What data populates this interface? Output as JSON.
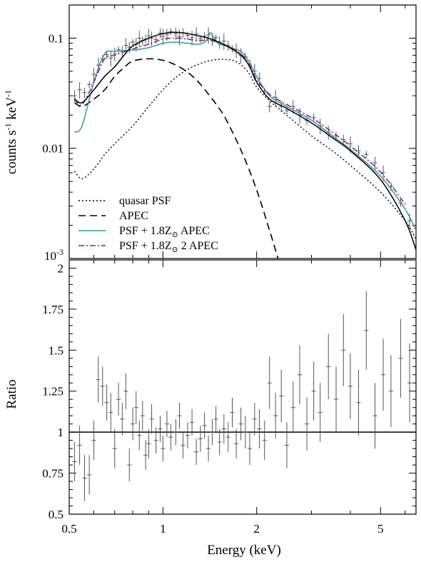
{
  "chart_data": [
    {
      "type": "line",
      "panel": "top",
      "xscale": "log",
      "yscale": "log",
      "xlim": [
        0.5,
        6.5
      ],
      "ylim": [
        0.001,
        0.2
      ],
      "ylabel": "counts s",
      "ylabel_sup1": "-1",
      "ylabel_mid": " keV",
      "ylabel_sup2": "-1",
      "yticks": [
        {
          "value": 0.1,
          "label": "0.1"
        },
        {
          "value": 0.01,
          "label": "0.01"
        },
        {
          "value": 0.001,
          "label": "10",
          "sup": "-3"
        }
      ],
      "legend": {
        "position": "bottom-left",
        "entries": [
          {
            "label": "quasar PSF",
            "style": "dotted",
            "color": "#000000"
          },
          {
            "label": "APEC",
            "style": "dashed",
            "color": "#000000"
          },
          {
            "label": "PSF + 1.8Z",
            "sub": "⊙",
            "tail": " APEC",
            "style": "solid",
            "color": "#2a9d9d"
          },
          {
            "label": "PSF + 1.8Z",
            "sub": "⊙",
            "tail": " 2 APEC",
            "style": "dashdot",
            "color": "#8b1a8b"
          }
        ]
      },
      "series": [
        {
          "name": "quasar PSF",
          "style": "dotted",
          "color": "#000000",
          "x": [
            0.52,
            0.55,
            0.6,
            0.65,
            0.7,
            0.8,
            0.9,
            1.0,
            1.1,
            1.2,
            1.3,
            1.4,
            1.5,
            1.6,
            1.7,
            1.8,
            1.9,
            2.0,
            2.2,
            2.5,
            3.0,
            3.5,
            4.0,
            5.0,
            6.0,
            6.5
          ],
          "y": [
            0.0062,
            0.0053,
            0.0065,
            0.0088,
            0.011,
            0.016,
            0.024,
            0.034,
            0.044,
            0.052,
            0.058,
            0.062,
            0.064,
            0.064,
            0.062,
            0.056,
            0.047,
            0.036,
            0.027,
            0.02,
            0.013,
            0.0095,
            0.007,
            0.004,
            0.0022,
            0.0015
          ]
        },
        {
          "name": "APEC",
          "style": "dashed",
          "color": "#000000",
          "x": [
            0.52,
            0.55,
            0.6,
            0.65,
            0.7,
            0.75,
            0.8,
            0.9,
            1.0,
            1.1,
            1.2,
            1.3,
            1.4,
            1.5,
            1.6,
            1.8,
            2.0,
            2.2,
            2.4
          ],
          "y": [
            0.026,
            0.024,
            0.028,
            0.034,
            0.045,
            0.054,
            0.062,
            0.065,
            0.063,
            0.057,
            0.049,
            0.04,
            0.031,
            0.024,
            0.018,
            0.009,
            0.0042,
            0.0018,
            0.0008
          ]
        },
        {
          "name": "PSF + 1.8Z⊙ APEC",
          "style": "solid",
          "color": "#2a9d9d",
          "x": [
            0.52,
            0.55,
            0.6,
            0.65,
            0.7,
            0.8,
            0.9,
            1.0,
            1.1,
            1.2,
            1.3,
            1.38,
            1.42,
            1.5,
            1.6,
            1.7,
            1.8,
            1.9,
            2.0,
            2.2,
            2.5,
            3.0,
            3.5,
            4.0,
            5.0,
            6.0,
            6.5
          ],
          "y": [
            0.014,
            0.016,
            0.04,
            0.072,
            0.076,
            0.078,
            0.082,
            0.09,
            0.092,
            0.09,
            0.088,
            0.095,
            0.112,
            0.09,
            0.085,
            0.08,
            0.074,
            0.06,
            0.045,
            0.03,
            0.024,
            0.018,
            0.013,
            0.0098,
            0.0056,
            0.0028,
            0.0018
          ]
        },
        {
          "name": "PSF + 1.8Z⊙ 2 APEC",
          "style": "dashdot",
          "color": "#8b1a8b",
          "x": [
            0.52,
            0.55,
            0.6,
            0.65,
            0.7,
            0.8,
            0.9,
            1.0,
            1.1,
            1.2,
            1.3,
            1.4,
            1.5,
            1.6,
            1.7,
            1.8,
            1.9,
            2.0,
            2.2,
            2.5,
            3.0,
            3.5,
            4.0,
            5.0,
            6.0
          ],
          "y": [
            0.028,
            0.025,
            0.04,
            0.065,
            0.07,
            0.08,
            0.088,
            0.098,
            0.1,
            0.098,
            0.095,
            0.096,
            0.092,
            0.086,
            0.078,
            0.07,
            0.057,
            0.042,
            0.031,
            0.025,
            0.019,
            0.014,
            0.0105,
            0.0061,
            0.0031
          ]
        },
        {
          "name": "",
          "style": "solid",
          "color": "#000000",
          "x": [
            0.52,
            0.55,
            0.6,
            0.65,
            0.7,
            0.75,
            0.8,
            0.9,
            1.0,
            1.1,
            1.2,
            1.3,
            1.4,
            1.5,
            1.6,
            1.7,
            1.8,
            1.9,
            2.0,
            2.2,
            2.5,
            3.0,
            3.5,
            4.0,
            5.0,
            6.0,
            6.5
          ],
          "y": [
            0.028,
            0.026,
            0.034,
            0.045,
            0.055,
            0.07,
            0.085,
            0.1,
            0.11,
            0.113,
            0.11,
            0.105,
            0.1,
            0.093,
            0.085,
            0.077,
            0.068,
            0.055,
            0.04,
            0.028,
            0.023,
            0.017,
            0.0125,
            0.0095,
            0.0052,
            0.0022,
            0.0012
          ]
        }
      ],
      "data_points": {
        "x": [
          0.52,
          0.54,
          0.56,
          0.58,
          0.6,
          0.62,
          0.64,
          0.66,
          0.68,
          0.7,
          0.72,
          0.74,
          0.76,
          0.78,
          0.8,
          0.82,
          0.84,
          0.86,
          0.88,
          0.9,
          0.92,
          0.95,
          0.98,
          1.0,
          1.03,
          1.06,
          1.1,
          1.13,
          1.16,
          1.2,
          1.24,
          1.28,
          1.32,
          1.36,
          1.4,
          1.44,
          1.48,
          1.52,
          1.57,
          1.62,
          1.67,
          1.72,
          1.78,
          1.84,
          1.9,
          1.97,
          2.04,
          2.12,
          2.2,
          2.3,
          2.4,
          2.5,
          2.62,
          2.75,
          2.9,
          3.05,
          3.2,
          3.4,
          3.6,
          3.8,
          4.0,
          4.25,
          4.5,
          4.8,
          5.1,
          5.4,
          5.8,
          6.2
        ],
        "y": [
          0.03,
          0.034,
          0.032,
          0.038,
          0.047,
          0.057,
          0.065,
          0.071,
          0.066,
          0.072,
          0.079,
          0.076,
          0.086,
          0.083,
          0.092,
          0.088,
          0.1,
          0.095,
          0.098,
          0.105,
          0.1,
          0.097,
          0.111,
          0.104,
          0.108,
          0.115,
          0.11,
          0.103,
          0.112,
          0.106,
          0.101,
          0.109,
          0.099,
          0.104,
          0.107,
          0.098,
          0.101,
          0.092,
          0.094,
          0.086,
          0.08,
          0.078,
          0.07,
          0.068,
          0.058,
          0.05,
          0.043,
          0.033,
          0.024,
          0.029,
          0.024,
          0.022,
          0.024,
          0.02,
          0.018,
          0.019,
          0.016,
          0.014,
          0.013,
          0.012,
          0.011,
          0.0095,
          0.0088,
          0.0074,
          0.006,
          0.0045,
          0.0032,
          0.0022
        ]
      }
    },
    {
      "type": "scatter",
      "panel": "bottom",
      "xscale": "log",
      "xlim": [
        0.5,
        6.5
      ],
      "ylim": [
        0.5,
        2.05
      ],
      "xlabel": "Energy (keV)",
      "ylabel": "Ratio",
      "reference_line": 1,
      "xticks": [
        {
          "value": 0.5,
          "label": "0.5"
        },
        {
          "value": 1,
          "label": "1"
        },
        {
          "value": 2,
          "label": "2"
        },
        {
          "value": 5,
          "label": "5"
        }
      ],
      "yticks": [
        {
          "value": 0.5,
          "label": "0.5"
        },
        {
          "value": 0.75,
          "label": "0.75"
        },
        {
          "value": 1,
          "label": "1"
        },
        {
          "value": 1.25,
          "label": "1.25"
        },
        {
          "value": 1.5,
          "label": "1.5"
        },
        {
          "value": 1.75,
          "label": "1.75"
        },
        {
          "value": 2,
          "label": "2"
        }
      ],
      "data_points": {
        "x": [
          0.52,
          0.54,
          0.56,
          0.58,
          0.6,
          0.62,
          0.64,
          0.66,
          0.68,
          0.7,
          0.72,
          0.74,
          0.76,
          0.78,
          0.8,
          0.82,
          0.84,
          0.86,
          0.88,
          0.9,
          0.92,
          0.95,
          0.98,
          1.0,
          1.03,
          1.06,
          1.1,
          1.13,
          1.16,
          1.2,
          1.24,
          1.28,
          1.32,
          1.36,
          1.4,
          1.44,
          1.48,
          1.52,
          1.57,
          1.62,
          1.67,
          1.72,
          1.78,
          1.84,
          1.9,
          1.97,
          2.04,
          2.12,
          2.2,
          2.3,
          2.4,
          2.5,
          2.62,
          2.75,
          2.9,
          3.05,
          3.2,
          3.4,
          3.6,
          3.8,
          4.0,
          4.25,
          4.5,
          4.8,
          5.1,
          5.4,
          5.8,
          6.2
        ],
        "y": [
          0.82,
          0.92,
          0.72,
          0.74,
          0.95,
          1.32,
          1.28,
          1.18,
          1.12,
          0.9,
          1.2,
          1.08,
          1.25,
          0.8,
          1.05,
          1.15,
          0.98,
          1.1,
          0.86,
          0.93,
          1.08,
          0.95,
          1.02,
          0.9,
          1.05,
          0.97,
          1.0,
          1.1,
          0.92,
          0.98,
          1.06,
          0.88,
          0.96,
          1.04,
          0.9,
          1.0,
          1.08,
          0.94,
          1.02,
          0.97,
          1.12,
          0.93,
          1.05,
          1.0,
          0.9,
          1.08,
          1.02,
          0.95,
          1.3,
          1.1,
          1.22,
          0.92,
          1.15,
          1.35,
          1.05,
          1.25,
          1.12,
          1.4,
          1.2,
          1.5,
          1.28,
          1.18,
          1.62,
          1.1,
          1.35,
          1.25,
          1.45,
          1.3
        ],
        "err": [
          0.12,
          0.12,
          0.14,
          0.12,
          0.12,
          0.14,
          0.12,
          0.11,
          0.12,
          0.12,
          0.1,
          0.1,
          0.11,
          0.1,
          0.1,
          0.1,
          0.09,
          0.09,
          0.09,
          0.09,
          0.09,
          0.08,
          0.08,
          0.08,
          0.08,
          0.08,
          0.08,
          0.08,
          0.08,
          0.08,
          0.08,
          0.08,
          0.08,
          0.08,
          0.08,
          0.08,
          0.08,
          0.08,
          0.09,
          0.09,
          0.09,
          0.09,
          0.1,
          0.1,
          0.1,
          0.1,
          0.12,
          0.12,
          0.16,
          0.14,
          0.16,
          0.14,
          0.16,
          0.18,
          0.16,
          0.18,
          0.18,
          0.2,
          0.2,
          0.22,
          0.2,
          0.2,
          0.24,
          0.2,
          0.22,
          0.22,
          0.24,
          0.24
        ]
      }
    }
  ]
}
